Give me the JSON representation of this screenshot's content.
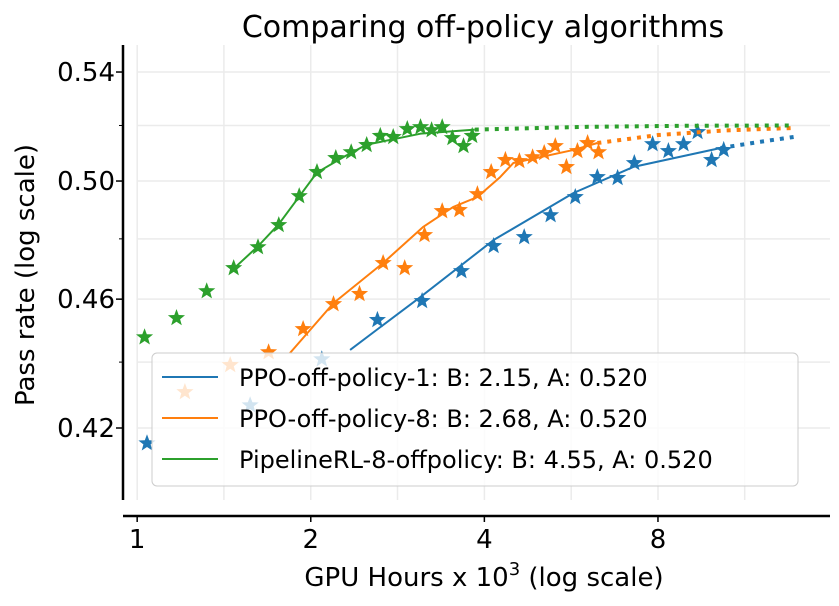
{
  "chart_data": {
    "type": "scatter",
    "title": "Comparing off-policy algorithms",
    "xlabel": "GPU Hours x 10",
    "xlabel_sup": "3",
    "xlabel_suffix": " (log scale)",
    "ylabel": "Pass rate (log scale)",
    "x_scale": "log",
    "y_scale": "log",
    "xlim": [
      0.945,
      15.9
    ],
    "ylim": [
      0.3947,
      0.5504
    ],
    "x_ticks": [
      1,
      2,
      4,
      8
    ],
    "x_tick_labels": [
      "1",
      "2",
      "4",
      "8"
    ],
    "x_grid": [
      1,
      1.414,
      2,
      2.828,
      4,
      5.657,
      8,
      11.31
    ],
    "y_ticks": [
      0.42,
      0.46,
      0.5,
      0.54
    ],
    "y_tick_labels": [
      "0.42",
      "0.46",
      "0.50",
      "0.54"
    ],
    "y_grid": [
      0.42,
      0.44,
      0.46,
      0.48,
      0.5,
      0.52,
      0.54
    ],
    "grid": true,
    "legend_position": "lower-right",
    "series": [
      {
        "name": "PPO-off-policy-1: B: 2.15, A: 0.520",
        "color": "#1f77b4",
        "points": [
          [
            1.04,
            0.4155
          ],
          [
            1.57,
            0.4268
          ],
          [
            2.09,
            0.4409
          ],
          [
            2.61,
            0.4533
          ],
          [
            3.12,
            0.4594
          ],
          [
            3.65,
            0.4692
          ],
          [
            4.15,
            0.4776
          ],
          [
            4.69,
            0.4806
          ],
          [
            5.21,
            0.4881
          ],
          [
            5.75,
            0.4944
          ],
          [
            6.28,
            0.5014
          ],
          [
            6.81,
            0.5011
          ],
          [
            7.28,
            0.5064
          ],
          [
            7.83,
            0.5132
          ],
          [
            8.34,
            0.5107
          ],
          [
            8.86,
            0.5132
          ],
          [
            9.37,
            0.5176
          ],
          [
            9.91,
            0.5075
          ],
          [
            10.4,
            0.5111
          ]
        ],
        "fit": [
          [
            2.34,
            0.4438
          ],
          [
            2.64,
            0.451
          ],
          [
            3.1,
            0.4607
          ],
          [
            4.15,
            0.4796
          ],
          [
            5.71,
            0.4958
          ],
          [
            7.25,
            0.505
          ],
          [
            10.27,
            0.5118
          ]
        ],
        "extrapolation": [
          [
            10.27,
            0.5118
          ],
          [
            12.0,
            0.514
          ],
          [
            13.75,
            0.5158
          ]
        ]
      },
      {
        "name": "PPO-off-policy-8: B: 2.68, A: 0.520",
        "color": "#ff7f0e",
        "points": [
          [
            1.21,
            0.4308
          ],
          [
            1.45,
            0.4391
          ],
          [
            1.69,
            0.4431
          ],
          [
            1.94,
            0.4504
          ],
          [
            2.19,
            0.4584
          ],
          [
            2.43,
            0.4617
          ],
          [
            2.67,
            0.4719
          ],
          [
            2.91,
            0.4702
          ],
          [
            3.15,
            0.4813
          ],
          [
            3.38,
            0.4895
          ],
          [
            3.62,
            0.4899
          ],
          [
            3.89,
            0.4954
          ],
          [
            4.11,
            0.5032
          ],
          [
            4.35,
            0.5075
          ],
          [
            4.6,
            0.5071
          ],
          [
            4.85,
            0.5085
          ],
          [
            5.08,
            0.51
          ],
          [
            5.31,
            0.5125
          ],
          [
            5.55,
            0.505
          ],
          [
            5.8,
            0.5107
          ],
          [
            6.04,
            0.5136
          ],
          [
            6.31,
            0.5103
          ]
        ],
        "fit": [
          [
            1.84,
            0.4428
          ],
          [
            2.19,
            0.4587
          ],
          [
            2.67,
            0.4719
          ],
          [
            3.13,
            0.484
          ],
          [
            3.53,
            0.4909
          ],
          [
            3.89,
            0.4944
          ],
          [
            4.26,
            0.5014
          ],
          [
            4.49,
            0.5064
          ],
          [
            5.71,
            0.5111
          ],
          [
            6.28,
            0.5136
          ]
        ],
        "extrapolation": [
          [
            6.28,
            0.5136
          ],
          [
            8.0,
            0.5165
          ],
          [
            10.5,
            0.5182
          ],
          [
            13.8,
            0.5191
          ]
        ]
      },
      {
        "name": "PipelineRL-8-offpolicy: B: 4.55, A: 0.520",
        "color": "#2ca02c",
        "points": [
          [
            1.03,
            0.4478
          ],
          [
            1.17,
            0.4539
          ],
          [
            1.32,
            0.4626
          ],
          [
            1.47,
            0.4702
          ],
          [
            1.62,
            0.4772
          ],
          [
            1.76,
            0.4847
          ],
          [
            1.91,
            0.4947
          ],
          [
            2.05,
            0.5032
          ],
          [
            2.21,
            0.5082
          ],
          [
            2.35,
            0.5103
          ],
          [
            2.5,
            0.5129
          ],
          [
            2.64,
            0.5162
          ],
          [
            2.78,
            0.5158
          ],
          [
            2.94,
            0.5187
          ],
          [
            3.1,
            0.5194
          ],
          [
            3.24,
            0.5183
          ],
          [
            3.38,
            0.5194
          ],
          [
            3.52,
            0.5154
          ],
          [
            3.68,
            0.5125
          ],
          [
            3.81,
            0.5162
          ]
        ],
        "fit": [
          [
            1.47,
            0.47
          ],
          [
            1.62,
            0.4775
          ],
          [
            1.76,
            0.485
          ],
          [
            2.05,
            0.503
          ],
          [
            2.3,
            0.509
          ],
          [
            2.5,
            0.513
          ],
          [
            3.1,
            0.517
          ],
          [
            3.85,
            0.5185
          ]
        ],
        "extrapolation": [
          [
            3.85,
            0.5185
          ],
          [
            6.0,
            0.5195
          ],
          [
            9.0,
            0.5199
          ],
          [
            13.8,
            0.52
          ]
        ]
      }
    ]
  }
}
